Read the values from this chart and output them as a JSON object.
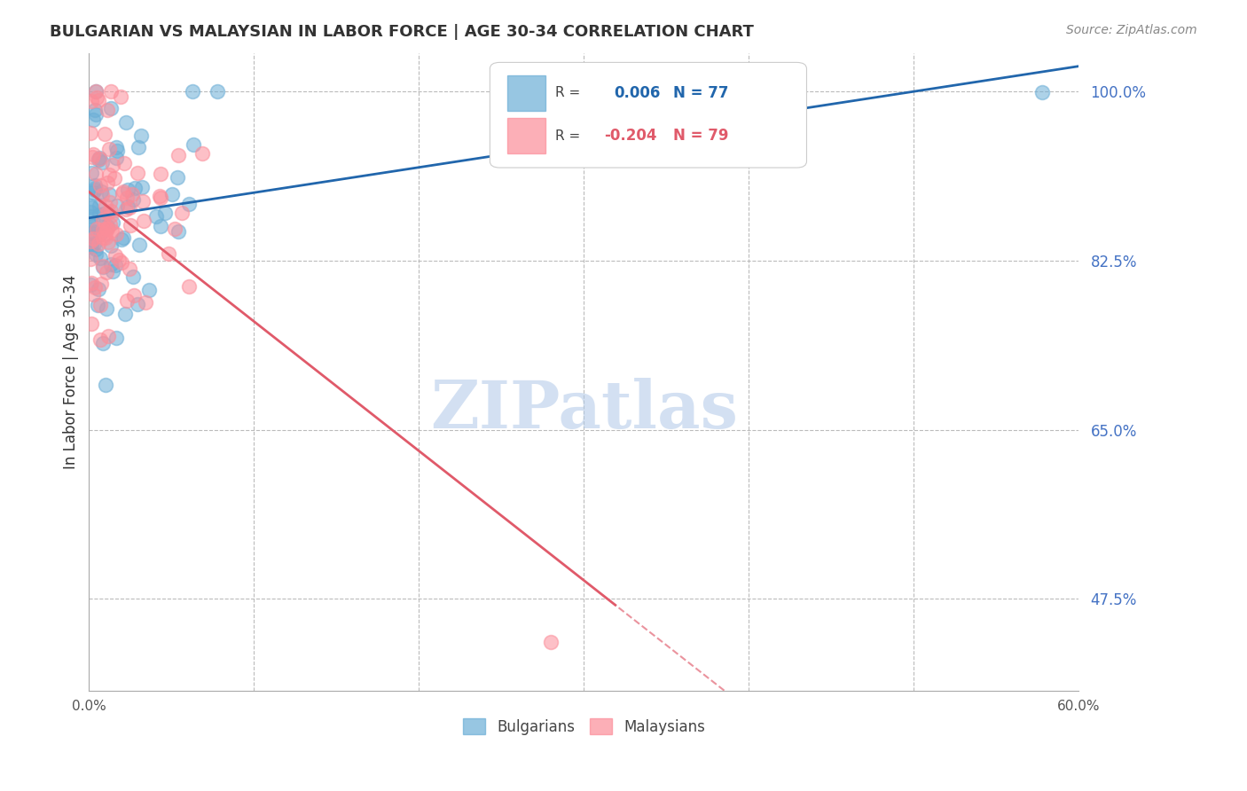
{
  "title": "BULGARIAN VS MALAYSIAN IN LABOR FORCE | AGE 30-34 CORRELATION CHART",
  "source": "Source: ZipAtlas.com",
  "ylabel": "In Labor Force | Age 30-34",
  "right_yticks": [
    100.0,
    82.5,
    65.0,
    47.5
  ],
  "right_ytick_labels": [
    "100.0%",
    "82.5%",
    "65.0%",
    "47.5%"
  ],
  "blue_R": 0.006,
  "blue_N": 77,
  "pink_R": -0.204,
  "pink_N": 79,
  "blue_color": "#6baed6",
  "pink_color": "#fc8d99",
  "blue_line_color": "#2166ac",
  "pink_line_color": "#e05a6a",
  "watermark": "ZIPatlas",
  "watermark_color": "#b0c8e8",
  "legend_label_blue": "Bulgarians",
  "legend_label_pink": "Malaysians",
  "xmin": 0.0,
  "xmax": 0.6,
  "ymin": 0.38,
  "ymax": 1.04
}
